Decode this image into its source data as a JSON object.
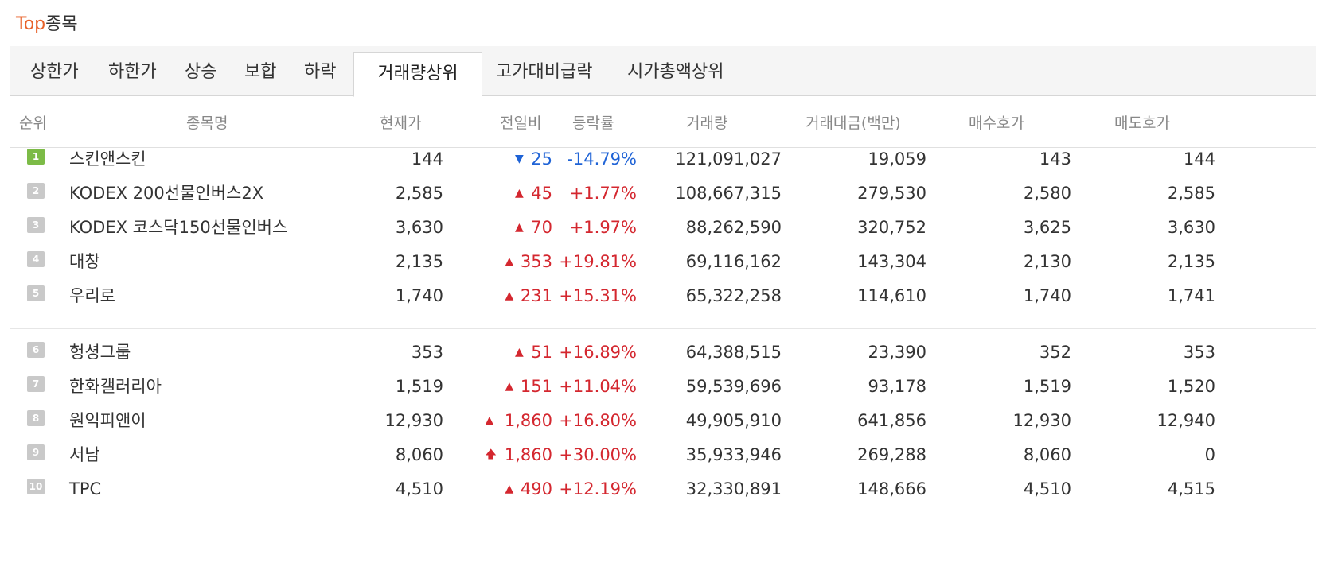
{
  "header": {
    "title_accent": "Top",
    "title_rest": "종목"
  },
  "tabs": [
    {
      "label": "상한가"
    },
    {
      "label": "하한가"
    },
    {
      "label": "상승"
    },
    {
      "label": "보합"
    },
    {
      "label": "하락"
    },
    {
      "label": "거래량상위"
    },
    {
      "label": "고가대비급락"
    },
    {
      "label": "시가총액상위"
    }
  ],
  "active_tab": "거래량상위",
  "columns": [
    "순위",
    "종목명",
    "현재가",
    "전일비",
    "등락률",
    "거래량",
    "거래대금(백만)",
    "매수호가",
    "매도호가"
  ],
  "colors": {
    "accent": "#e8632b",
    "up": "#d4272f",
    "down": "#1f63d6",
    "rank_first": "#7cbb47",
    "rank_other": "#c9c9c9"
  },
  "rows": [
    {
      "rank": "1",
      "name": "스킨앤스킨",
      "price": "144",
      "change_icon": "down-triangle-icon",
      "change": "25",
      "rate": "-14.79%",
      "volume": "121,091,027",
      "amount": "19,059",
      "bid": "143",
      "ask": "144"
    },
    {
      "rank": "2",
      "name": "KODEX 200선물인버스2X",
      "price": "2,585",
      "change_icon": "up-triangle-icon",
      "change": "45",
      "rate": "+1.77%",
      "volume": "108,667,315",
      "amount": "279,530",
      "bid": "2,580",
      "ask": "2,585"
    },
    {
      "rank": "3",
      "name": "KODEX 코스닥150선물인버스",
      "price": "3,630",
      "change_icon": "up-triangle-icon",
      "change": "70",
      "rate": "+1.97%",
      "volume": "88,262,590",
      "amount": "320,752",
      "bid": "3,625",
      "ask": "3,630"
    },
    {
      "rank": "4",
      "name": "대창",
      "price": "2,135",
      "change_icon": "up-triangle-icon",
      "change": "353",
      "rate": "+19.81%",
      "volume": "69,116,162",
      "amount": "143,304",
      "bid": "2,130",
      "ask": "2,135"
    },
    {
      "rank": "5",
      "name": "우리로",
      "price": "1,740",
      "change_icon": "up-triangle-icon",
      "change": "231",
      "rate": "+15.31%",
      "volume": "65,322,258",
      "amount": "114,610",
      "bid": "1,740",
      "ask": "1,741"
    },
    {
      "rank": "6",
      "name": "헝셩그룹",
      "price": "353",
      "change_icon": "up-triangle-icon",
      "change": "51",
      "rate": "+16.89%",
      "volume": "64,388,515",
      "amount": "23,390",
      "bid": "352",
      "ask": "353"
    },
    {
      "rank": "7",
      "name": "한화갤러리아",
      "price": "1,519",
      "change_icon": "up-triangle-icon",
      "change": "151",
      "rate": "+11.04%",
      "volume": "59,539,696",
      "amount": "93,178",
      "bid": "1,519",
      "ask": "1,520"
    },
    {
      "rank": "8",
      "name": "원익피앤이",
      "price": "12,930",
      "change_icon": "up-triangle-icon",
      "change": "1,860",
      "rate": "+16.80%",
      "volume": "49,905,910",
      "amount": "641,856",
      "bid": "12,930",
      "ask": "12,940"
    },
    {
      "rank": "9",
      "name": "서남",
      "price": "8,060",
      "change_icon": "upper-limit-arrow-icon",
      "change": "1,860",
      "rate": "+30.00%",
      "volume": "35,933,946",
      "amount": "269,288",
      "bid": "8,060",
      "ask": "0"
    },
    {
      "rank": "10",
      "name": "TPC",
      "price": "4,510",
      "change_icon": "up-triangle-icon",
      "change": "490",
      "rate": "+12.19%",
      "volume": "32,330,891",
      "amount": "148,666",
      "bid": "4,510",
      "ask": "4,515"
    }
  ]
}
